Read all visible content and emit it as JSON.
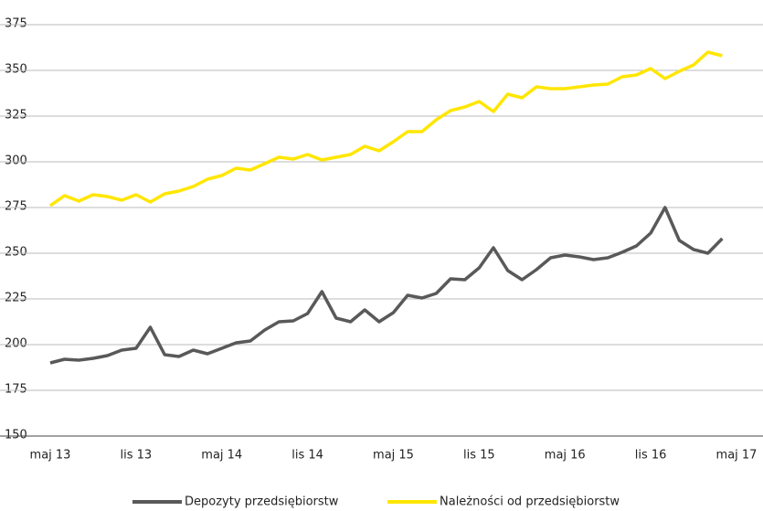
{
  "chart_data": {
    "type": "line",
    "categories": [
      "maj 13",
      null,
      null,
      null,
      null,
      null,
      "lis 13",
      null,
      null,
      null,
      null,
      null,
      "maj 14",
      null,
      null,
      null,
      null,
      null,
      "lis 14",
      null,
      null,
      null,
      null,
      null,
      "maj 15",
      null,
      null,
      null,
      null,
      null,
      "lis 15",
      null,
      null,
      null,
      null,
      null,
      "maj 16",
      null,
      null,
      null,
      null,
      null,
      "lis 16",
      null,
      null,
      null,
      null,
      null,
      "maj 17"
    ],
    "series": [
      {
        "name": "Depozyty przedsiębiorstw",
        "color": "#595959",
        "values": [
          190,
          192,
          191.5,
          192.5,
          194,
          197,
          198,
          209.5,
          194.5,
          193.5,
          197,
          195,
          198,
          201,
          202,
          208,
          212.5,
          213,
          217,
          229,
          214.5,
          212.5,
          219,
          212.5,
          217.5,
          227,
          225.5,
          228,
          236,
          235.5,
          242,
          253,
          240.5,
          235.5,
          241,
          247.5,
          249,
          248,
          246.5,
          247.5,
          250.5,
          254,
          261,
          275,
          257,
          252,
          250,
          258,
          null
        ]
      },
      {
        "name": "Należności od przedsiębiorstw",
        "color": "#ffe600",
        "values": [
          276,
          281.5,
          278.5,
          282,
          281,
          279,
          282,
          278,
          282.5,
          284,
          286.5,
          290.5,
          292.5,
          296.5,
          295.5,
          299,
          302.5,
          301.5,
          304,
          301,
          302.5,
          304,
          308.5,
          306,
          311,
          316.5,
          316.5,
          323,
          328,
          330,
          333,
          327.5,
          337,
          335,
          341,
          340,
          340,
          341,
          342,
          342.5,
          346.5,
          347.5,
          351,
          345.5,
          349.5,
          353,
          360,
          358,
          null
        ]
      }
    ],
    "ylim": [
      150,
      375
    ],
    "yticks": [
      150,
      175,
      200,
      225,
      250,
      275,
      300,
      325,
      350,
      375
    ],
    "grid": true,
    "legend": "bottom"
  }
}
